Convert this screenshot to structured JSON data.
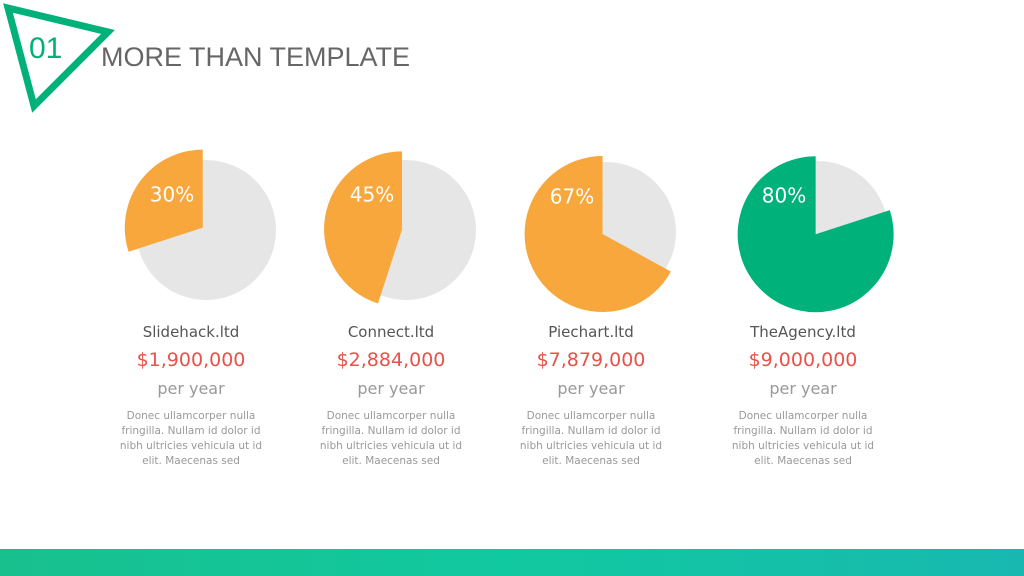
{
  "header": {
    "number": "01",
    "title": "MORE THAN TEMPLATE"
  },
  "chart_data": [
    {
      "type": "pie",
      "values": [
        30
      ],
      "value_labels": [
        "30%"
      ],
      "color": "#f7a73b",
      "company": "Slidehack.ltd",
      "amount": "$1,900,000",
      "period": "per year",
      "description": "Donec ullamcorper nulla fringilla. Nullam id dolor id nibh ultricies vehicula ut id elit. Maecenas sed"
    },
    {
      "type": "pie",
      "values": [
        45
      ],
      "value_labels": [
        "45%"
      ],
      "color": "#f7a73b",
      "company": "Connect.ltd",
      "amount": "$2,884,000",
      "period": "per year",
      "description": "Donec ullamcorper nulla fringilla. Nullam id dolor id nibh ultricies vehicula ut id elit. Maecenas sed"
    },
    {
      "type": "pie",
      "values": [
        67
      ],
      "value_labels": [
        "67%"
      ],
      "color": "#f7a73b",
      "company": "Piechart.ltd",
      "amount": "$7,879,000",
      "period": "per year",
      "description": "Donec ullamcorper nulla fringilla. Nullam id dolor id nibh ultricies vehicula ut id elit. Maecenas sed"
    },
    {
      "type": "pie",
      "values": [
        80
      ],
      "value_labels": [
        "80%"
      ],
      "color": "#00b27a",
      "company": "TheAgency.ltd",
      "amount": "$9,000,000",
      "period": "per year",
      "description": "Donec ullamcorper nulla fringilla. Nullam id dolor id nibh ultricies vehicula ut id elit. Maecenas sed"
    }
  ]
}
